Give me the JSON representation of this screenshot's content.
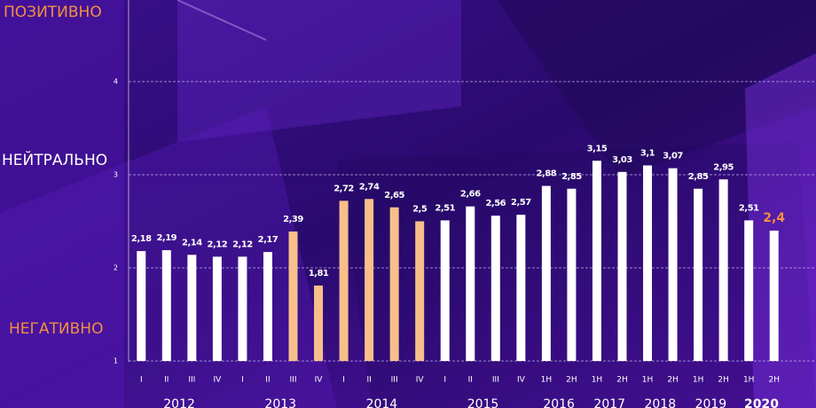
{
  "chart_data": {
    "type": "bar",
    "zone_labels": {
      "positive": "ПОЗИТИВНО",
      "neutral": "НЕЙТРАЛЬНО",
      "negative": "НЕГАТИВНО"
    },
    "groups": [
      {
        "name": "2012",
        "categories": [
          "I",
          "II",
          "III",
          "IV"
        ],
        "values": [
          2.18,
          2.19,
          2.14,
          2.12
        ],
        "value_labels": [
          "2,18",
          "2,19",
          "2,14",
          "2,12"
        ],
        "colors": [
          "#ffffff",
          "#ffffff",
          "#ffffff",
          "#ffffff"
        ]
      },
      {
        "name": "2013",
        "categories": [
          "I",
          "II",
          "III",
          "IV"
        ],
        "values": [
          2.12,
          2.17,
          2.39,
          1.81
        ],
        "value_labels": [
          "2,12",
          "2,17",
          "2,39",
          "1,81"
        ],
        "colors": [
          "#ffffff",
          "#ffffff",
          "#f7c08a",
          "#f7c08a"
        ]
      },
      {
        "name": "2014",
        "categories": [
          "I",
          "II",
          "III",
          "IV"
        ],
        "values": [
          2.72,
          2.74,
          2.65,
          2.5
        ],
        "value_labels": [
          "2,72",
          "2,74",
          "2,65",
          "2,5"
        ],
        "colors": [
          "#f7c08a",
          "#f7c08a",
          "#f7c08a",
          "#f7c08a"
        ]
      },
      {
        "name": "2015",
        "categories": [
          "I",
          "II",
          "III",
          "IV"
        ],
        "values": [
          2.51,
          2.66,
          2.56,
          2.57
        ],
        "value_labels": [
          "2,51",
          "2,66",
          "2,56",
          "2,57"
        ],
        "colors": [
          "#ffffff",
          "#ffffff",
          "#ffffff",
          "#ffffff"
        ]
      },
      {
        "name": "2016",
        "categories": [
          "1H",
          "2H"
        ],
        "values": [
          2.88,
          2.85
        ],
        "value_labels": [
          "2,88",
          "2,85"
        ],
        "colors": [
          "#ffffff",
          "#ffffff"
        ]
      },
      {
        "name": "2017",
        "categories": [
          "1H",
          "2H"
        ],
        "values": [
          3.15,
          3.03
        ],
        "value_labels": [
          "3,15",
          "3,03"
        ],
        "colors": [
          "#ffffff",
          "#ffffff"
        ]
      },
      {
        "name": "2018",
        "categories": [
          "1H",
          "2H"
        ],
        "values": [
          3.1,
          3.07
        ],
        "value_labels": [
          "3,1",
          "3,07"
        ],
        "colors": [
          "#ffffff",
          "#ffffff"
        ]
      },
      {
        "name": "2019",
        "categories": [
          "1H",
          "2H"
        ],
        "values": [
          2.85,
          2.95
        ],
        "value_labels": [
          "2,85",
          "2,95"
        ],
        "colors": [
          "#ffffff",
          "#ffffff"
        ]
      },
      {
        "name": "2020",
        "categories": [
          "1H",
          "2H"
        ],
        "values": [
          2.51,
          2.4
        ],
        "value_labels": [
          "2,51",
          "2,4"
        ],
        "colors": [
          "#ffffff",
          "#ffffff"
        ]
      }
    ],
    "ylim": [
      1,
      5
    ],
    "yticks": [
      1,
      2,
      3,
      4
    ],
    "grid": true
  }
}
